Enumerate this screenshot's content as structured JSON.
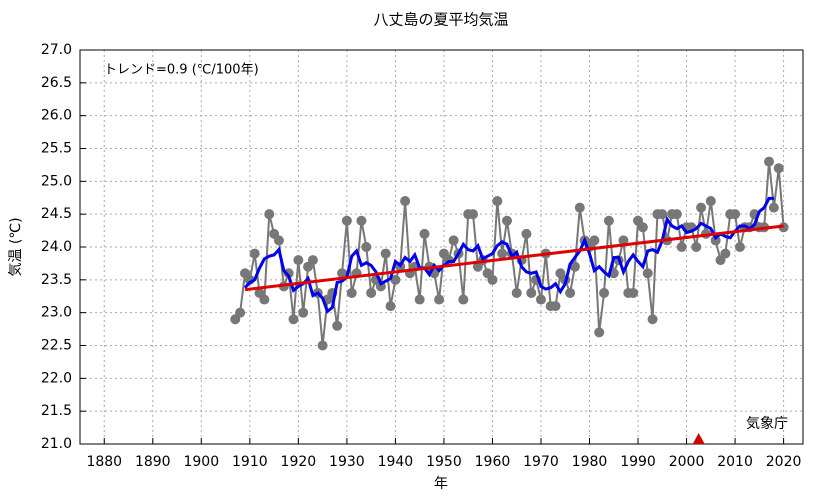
{
  "chart_data": {
    "type": "line",
    "title": "八丈島の夏平均気温",
    "xlabel": "年",
    "ylabel": "気温 (℃)",
    "annotations": [
      "トレンド=0.9 (℃/100年)",
      "気象庁"
    ],
    "xlim": [
      1875,
      2024
    ],
    "ylim": [
      21.0,
      27.0
    ],
    "xticks": [
      1880,
      1890,
      1900,
      1910,
      1920,
      1930,
      1940,
      1950,
      1960,
      1970,
      1980,
      1990,
      2000,
      2010,
      2020
    ],
    "yticks": [
      {
        "value": 21.0,
        "label": "21.0"
      },
      {
        "value": 21.5,
        "label": "21.5"
      },
      {
        "value": 22.0,
        "label": "22.0"
      },
      {
        "value": 22.5,
        "label": "22.5"
      },
      {
        "value": 23.0,
        "label": "23.0"
      },
      {
        "value": 23.5,
        "label": "23.5"
      },
      {
        "value": 24.0,
        "label": "24.0"
      },
      {
        "value": 24.5,
        "label": "24.5"
      },
      {
        "value": 25.0,
        "label": "25.0"
      },
      {
        "value": 25.5,
        "label": "25.5"
      },
      {
        "value": 26.0,
        "label": "26.0"
      },
      {
        "value": 26.5,
        "label": "26.5"
      },
      {
        "value": 27.0,
        "label": "27.0"
      }
    ],
    "grid": true,
    "series": [
      {
        "color": "#777777",
        "markers": true,
        "x": [
          1907,
          1908,
          1909,
          1910,
          1911,
          1912,
          1913,
          1914,
          1915,
          1916,
          1917,
          1918,
          1919,
          1920,
          1921,
          1922,
          1923,
          1924,
          1925,
          1926,
          1927,
          1928,
          1929,
          1930,
          1931,
          1932,
          1933,
          1934,
          1935,
          1936,
          1937,
          1938,
          1939,
          1940,
          1941,
          1942,
          1943,
          1944,
          1945,
          1946,
          1947,
          1948,
          1949,
          1950,
          1951,
          1952,
          1953,
          1954,
          1955,
          1956,
          1957,
          1958,
          1959,
          1960,
          1961,
          1962,
          1963,
          1964,
          1965,
          1966,
          1967,
          1968,
          1969,
          1970,
          1971,
          1972,
          1973,
          1974,
          1975,
          1976,
          1977,
          1978,
          1979,
          1980,
          1981,
          1982,
          1983,
          1984,
          1985,
          1986,
          1987,
          1988,
          1989,
          1990,
          1991,
          1992,
          1993,
          1994,
          1995,
          1996,
          1997,
          1998,
          1999,
          2000,
          2001,
          2002,
          2003,
          2004,
          2005,
          2006,
          2007,
          2008,
          2009,
          2010,
          2011,
          2012,
          2013,
          2014,
          2015,
          2016,
          2017,
          2018,
          2019,
          2020
        ],
        "values": [
          22.9,
          23.0,
          23.6,
          23.5,
          23.9,
          23.3,
          23.2,
          24.5,
          24.2,
          24.1,
          23.4,
          23.6,
          22.9,
          23.8,
          23.0,
          23.7,
          23.8,
          23.3,
          22.5,
          23.2,
          23.3,
          22.8,
          23.6,
          24.4,
          23.3,
          23.6,
          24.4,
          24.0,
          23.3,
          23.5,
          23.4,
          23.9,
          23.1,
          23.5,
          23.7,
          24.7,
          23.6,
          23.7,
          23.2,
          24.2,
          23.7,
          23.6,
          23.2,
          23.9,
          23.8,
          24.1,
          23.9,
          23.2,
          24.5,
          24.5,
          23.7,
          23.8,
          23.6,
          23.5,
          24.7,
          23.9,
          24.4,
          23.9,
          23.3,
          23.8,
          24.2,
          23.3,
          23.5,
          23.2,
          23.9,
          23.1,
          23.1,
          23.6,
          23.5,
          23.3,
          23.7,
          24.6,
          24.1,
          24.0,
          24.1,
          22.7,
          23.3,
          24.4,
          23.6,
          23.8,
          24.1,
          23.3,
          23.3,
          24.4,
          24.3,
          23.6,
          22.9,
          24.5,
          24.5,
          24.1,
          24.5,
          24.5,
          24.0,
          24.3,
          24.3,
          24.0,
          24.6,
          24.2,
          24.7,
          24.1,
          23.8,
          23.9,
          24.5,
          24.5,
          24.0,
          24.3,
          24.3,
          24.5,
          24.3,
          24.3,
          25.3,
          24.6,
          25.2,
          24.3
        ]
      },
      {
        "color": "#0000ee",
        "markers": false,
        "x": [
          1909,
          1910,
          1911,
          1912,
          1913,
          1914,
          1915,
          1916,
          1917,
          1918,
          1919,
          1920,
          1921,
          1922,
          1923,
          1924,
          1925,
          1926,
          1927,
          1928,
          1929,
          1930,
          1931,
          1932,
          1933,
          1934,
          1935,
          1936,
          1937,
          1938,
          1939,
          1940,
          1941,
          1942,
          1943,
          1944,
          1945,
          1946,
          1947,
          1948,
          1949,
          1950,
          1951,
          1952,
          1953,
          1954,
          1955,
          1956,
          1957,
          1958,
          1959,
          1960,
          1961,
          1962,
          1963,
          1964,
          1965,
          1966,
          1967,
          1968,
          1969,
          1970,
          1971,
          1972,
          1973,
          1974,
          1975,
          1976,
          1977,
          1978,
          1979,
          1980,
          1981,
          1982,
          1983,
          1984,
          1985,
          1986,
          1987,
          1988,
          1989,
          1990,
          1991,
          1992,
          1993,
          1994,
          1995,
          1996,
          1997,
          1998,
          1999,
          2000,
          2001,
          2002,
          2003,
          2004,
          2005,
          2006,
          2007,
          2008,
          2009,
          2010,
          2011,
          2012,
          2013,
          2014,
          2015,
          2016,
          2017,
          2018
        ],
        "values": [
          23.38,
          23.46,
          23.5,
          23.68,
          23.82,
          23.86,
          23.88,
          23.96,
          23.64,
          23.56,
          23.34,
          23.4,
          23.44,
          23.52,
          23.26,
          23.3,
          23.22,
          23.02,
          23.08,
          23.46,
          23.48,
          23.54,
          23.86,
          23.94,
          23.72,
          23.76,
          23.72,
          23.62,
          23.44,
          23.48,
          23.52,
          23.78,
          23.72,
          23.84,
          23.78,
          23.88,
          23.68,
          23.68,
          23.58,
          23.72,
          23.64,
          23.72,
          23.78,
          23.78,
          23.9,
          24.04,
          23.96,
          23.94,
          24.02,
          23.82,
          23.86,
          23.9,
          24.02,
          24.08,
          24.04,
          23.86,
          23.92,
          23.7,
          23.62,
          23.6,
          23.62,
          23.4,
          23.36,
          23.38,
          23.44,
          23.32,
          23.44,
          23.74,
          23.84,
          23.94,
          24.1,
          23.9,
          23.64,
          23.7,
          23.62,
          23.56,
          23.84,
          23.84,
          23.62,
          23.78,
          23.88,
          23.78,
          23.7,
          23.94,
          23.96,
          23.92,
          24.1,
          24.42,
          24.32,
          24.28,
          24.32,
          24.22,
          24.24,
          24.28,
          24.36,
          24.32,
          24.28,
          24.14,
          24.2,
          24.16,
          24.14,
          24.24,
          24.32,
          24.32,
          24.28,
          24.34,
          24.54,
          24.6,
          24.74,
          24.74
        ]
      },
      {
        "color": "#e00000",
        "markers": false,
        "x": [
          1909,
          2020
        ],
        "values": [
          23.35,
          24.32
        ]
      }
    ],
    "marker": {
      "x": 2002.5,
      "y": 21.0,
      "color": "#cc0000"
    }
  }
}
